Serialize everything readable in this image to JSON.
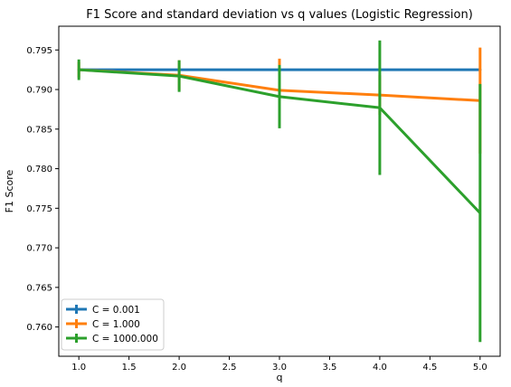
{
  "chart_data": {
    "type": "line",
    "title": "F1 Score and standard deviation vs q values (Logistic Regression)",
    "xlabel": "q",
    "ylabel": "F1 Score",
    "xlim": [
      0.8,
      5.2
    ],
    "ylim": [
      0.7563,
      0.798
    ],
    "xticks": [
      1.0,
      1.5,
      2.0,
      2.5,
      3.0,
      3.5,
      4.0,
      4.5,
      5.0
    ],
    "xtick_labels": [
      "1.0",
      "1.5",
      "2.0",
      "2.5",
      "3.0",
      "3.5",
      "4.0",
      "4.5",
      "5.0"
    ],
    "yticks": [
      0.76,
      0.765,
      0.77,
      0.775,
      0.78,
      0.785,
      0.79,
      0.795
    ],
    "ytick_labels": [
      "0.760",
      "0.765",
      "0.770",
      "0.775",
      "0.780",
      "0.785",
      "0.790",
      "0.795"
    ],
    "x": [
      1,
      2,
      3,
      4,
      5
    ],
    "grid": false,
    "legend_position": "bottom-left",
    "series": [
      {
        "name": "C = 0.001",
        "color": "#1f77b4",
        "values": [
          0.7925,
          0.7925,
          0.7925,
          0.7925,
          0.7925
        ],
        "yerr": [
          0.0001,
          0.0001,
          0.0001,
          0.0001,
          0.0001
        ]
      },
      {
        "name": "C = 1.000",
        "color": "#ff7f0e",
        "values": [
          0.7925,
          0.7918,
          0.7899,
          0.7893,
          0.7886
        ],
        "yerr": [
          0.001,
          0.0019,
          0.004,
          0.0025,
          0.0067
        ]
      },
      {
        "name": "C = 1000.000",
        "color": "#2ca02c",
        "values": [
          0.7925,
          0.7917,
          0.7891,
          0.7877,
          0.7744
        ],
        "yerr": [
          0.0013,
          0.002,
          0.004,
          0.0085,
          0.0163
        ]
      }
    ]
  }
}
